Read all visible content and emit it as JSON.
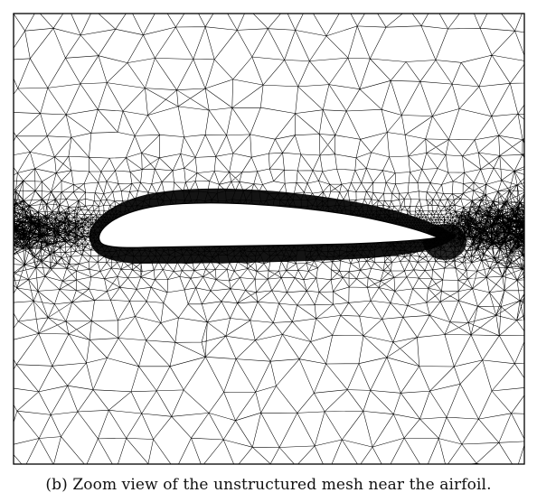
{
  "figure": {
    "caption": "(b) Zoom view of the unstructured mesh near the airfoil.",
    "mesh_description": "unstructured triangular mesh",
    "colors": {
      "background": "#ffffff",
      "mesh_lines": "#000000",
      "airfoil_fill": "#ffffff"
    }
  }
}
